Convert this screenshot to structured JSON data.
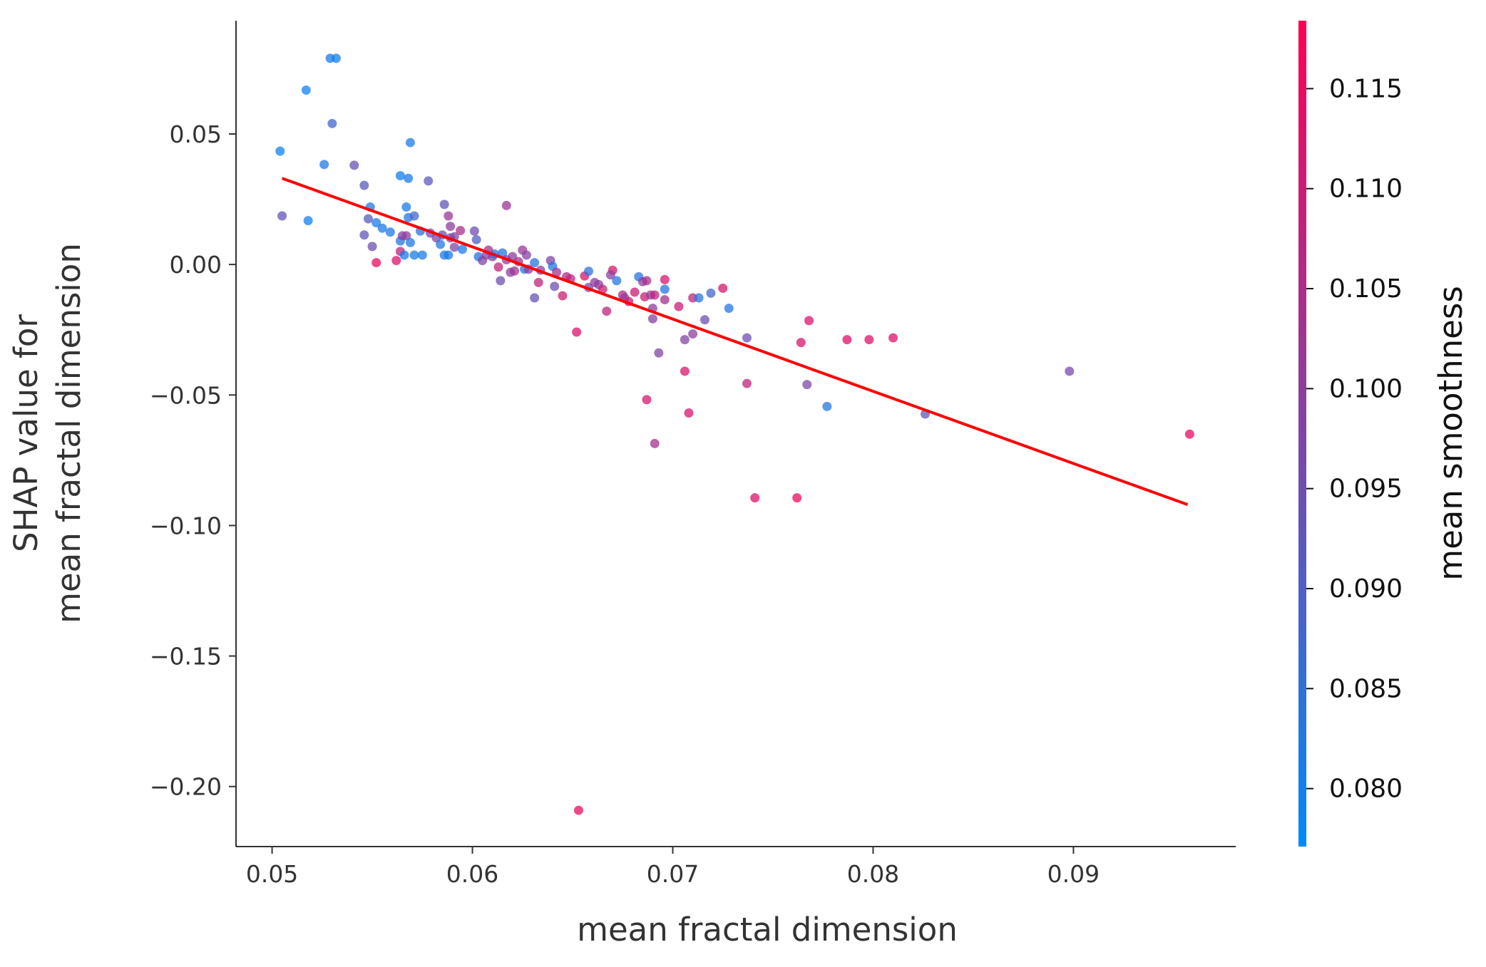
{
  "chart_data": {
    "type": "scatter",
    "xlabel": "mean fractal dimension",
    "ylabel": [
      "SHAP value for",
      "mean fractal dimension"
    ],
    "xlim": [
      0.0482,
      0.0981
    ],
    "ylim": [
      -0.223,
      0.0934
    ],
    "xticks": [
      0.05,
      0.06,
      0.07,
      0.08,
      0.09
    ],
    "yticks": [
      0.05,
      {
        "value": 0,
        "label": "0.00"
      },
      {
        "value": -0.05,
        "label": "−0.05"
      },
      {
        "value": -0.1,
        "label": "−0.10"
      },
      {
        "value": -0.15,
        "label": "−0.15"
      },
      {
        "value": -0.2,
        "label": "−0.20"
      }
    ],
    "x": [
      0.0504,
      0.0505,
      0.0517,
      0.0518,
      0.0529,
      0.0532,
      0.053,
      0.0526,
      0.0541,
      0.0546,
      0.0548,
      0.0549,
      0.0546,
      0.055,
      0.0552,
      0.0552,
      0.0555,
      0.0559,
      0.0562,
      0.0564,
      0.0567,
      0.0568,
      0.0569,
      0.0564,
      0.0565,
      0.0567,
      0.0564,
      0.0566,
      0.0568,
      0.0569,
      0.0571,
      0.0571,
      0.0575,
      0.0574,
      0.0578,
      0.0579,
      0.0582,
      0.0584,
      0.0585,
      0.0586,
      0.0588,
      0.0586,
      0.0588,
      0.0589,
      0.0589,
      0.0591,
      0.0591,
      0.0594,
      0.0595,
      0.0601,
      0.0602,
      0.0603,
      0.0605,
      0.0607,
      0.0608,
      0.061,
      0.0611,
      0.0613,
      0.0614,
      0.0615,
      0.0617,
      0.0617,
      0.0619,
      0.062,
      0.0621,
      0.0623,
      0.0625,
      0.0626,
      0.0627,
      0.0628,
      0.0631,
      0.0631,
      0.0633,
      0.0634,
      0.0639,
      0.064,
      0.0641,
      0.0642,
      0.0645,
      0.0647,
      0.0649,
      0.0652,
      0.0653,
      0.0656,
      0.0658,
      0.0658,
      0.0661,
      0.0663,
      0.0665,
      0.0667,
      0.067,
      0.0669,
      0.0672,
      0.0675,
      0.0676,
      0.0678,
      0.0681,
      0.0683,
      0.0685,
      0.0686,
      0.0687,
      0.0687,
      0.0689,
      0.069,
      0.069,
      0.0691,
      0.0691,
      0.0693,
      0.0696,
      0.0696,
      0.0696,
      0.0703,
      0.0706,
      0.0706,
      0.0708,
      0.071,
      0.071,
      0.0713,
      0.0716,
      0.0719,
      0.0725,
      0.0728,
      0.0737,
      0.0737,
      0.0741,
      0.0768,
      0.0764,
      0.0762,
      0.0767,
      0.0777,
      0.0787,
      0.0798,
      0.081,
      0.0826,
      0.0898,
      0.0958
    ],
    "values": [
      0.0434,
      0.0186,
      0.0668,
      0.0168,
      0.079,
      0.079,
      0.054,
      0.0383,
      0.038,
      0.0303,
      0.0175,
      0.022,
      0.0113,
      0.0069,
      0.0007,
      0.016,
      0.0139,
      0.0124,
      0.0015,
      0.034,
      0.022,
      0.033,
      0.0467,
      0.009,
      0.011,
      0.011,
      0.005,
      0.0036,
      0.018,
      0.0084,
      0.0036,
      0.0186,
      0.0036,
      0.0128,
      0.032,
      0.012,
      0.0102,
      0.0077,
      0.0113,
      0.0036,
      0.0036,
      0.023,
      0.0186,
      0.0146,
      0.0102,
      0.0066,
      0.0106,
      0.013,
      0.0058,
      0.0128,
      0.0095,
      0.003,
      0.0015,
      0.0036,
      0.0055,
      0.003,
      0.004,
      -0.001,
      -0.0062,
      0.0044,
      0.0226,
      0.0018,
      -0.003,
      0.003,
      -0.0025,
      0.0011,
      0.0055,
      -0.0018,
      0.0036,
      -0.0018,
      0.0007,
      -0.0128,
      -0.0069,
      -0.0022,
      0.0015,
      -0.0007,
      -0.0084,
      -0.003,
      -0.012,
      -0.0047,
      -0.0055,
      -0.0259,
      -0.2091,
      -0.0044,
      -0.0026,
      -0.0088,
      -0.0069,
      -0.0077,
      -0.0095,
      -0.0179,
      -0.0022,
      -0.004,
      -0.0062,
      -0.0117,
      -0.0128,
      -0.0142,
      -0.0106,
      -0.0047,
      -0.0066,
      -0.0124,
      -0.0062,
      -0.0518,
      -0.0117,
      -0.0168,
      -0.0208,
      -0.0686,
      -0.0117,
      -0.0339,
      -0.0058,
      -0.0095,
      -0.0135,
      -0.0161,
      -0.0288,
      -0.0409,
      -0.0569,
      -0.0128,
      -0.0266,
      -0.0128,
      -0.0212,
      -0.011,
      -0.0091,
      -0.0168,
      -0.0281,
      -0.0456,
      -0.0894,
      -0.0215,
      -0.0299,
      -0.0894,
      -0.046,
      -0.0544,
      -0.0288,
      -0.0288,
      -0.0281,
      -0.0573,
      -0.0409,
      -0.065
    ],
    "color_values": [
      0.08,
      0.093,
      0.08,
      0.08,
      0.082,
      0.08,
      0.088,
      0.082,
      0.094,
      0.092,
      0.091,
      0.082,
      0.093,
      0.095,
      0.115,
      0.082,
      0.082,
      0.082,
      0.113,
      0.08,
      0.082,
      0.082,
      0.082,
      0.083,
      0.098,
      0.1,
      0.108,
      0.082,
      0.082,
      0.082,
      0.082,
      0.088,
      0.082,
      0.083,
      0.092,
      0.095,
      0.098,
      0.083,
      0.092,
      0.082,
      0.082,
      0.093,
      0.102,
      0.1,
      0.098,
      0.097,
      0.097,
      0.105,
      0.082,
      0.095,
      0.09,
      0.083,
      0.098,
      0.1,
      0.104,
      0.098,
      0.083,
      0.108,
      0.095,
      0.083,
      0.102,
      0.1,
      0.1,
      0.1,
      0.102,
      0.104,
      0.102,
      0.083,
      0.098,
      0.1,
      0.084,
      0.094,
      0.108,
      0.1,
      0.098,
      0.083,
      0.095,
      0.104,
      0.11,
      0.106,
      0.108,
      0.113,
      0.115,
      0.112,
      0.084,
      0.098,
      0.1,
      0.1,
      0.11,
      0.108,
      0.112,
      0.1,
      0.083,
      0.106,
      0.1,
      0.11,
      0.11,
      0.083,
      0.1,
      0.11,
      0.104,
      0.112,
      0.1,
      0.1,
      0.1,
      0.104,
      0.108,
      0.098,
      0.112,
      0.083,
      0.104,
      0.11,
      0.098,
      0.112,
      0.112,
      0.108,
      0.1,
      0.083,
      0.095,
      0.088,
      0.112,
      0.083,
      0.095,
      0.108,
      0.113,
      0.113,
      0.112,
      0.115,
      0.097,
      0.083,
      0.113,
      0.113,
      0.113,
      0.093,
      0.097,
      0.115
    ],
    "trend": {
      "x": [
        0.0505,
        0.0957
      ],
      "values": [
        0.033,
        -0.092
      ],
      "color": "#ff0000"
    },
    "colorbar": {
      "label": "mean smoothness",
      "lim": [
        0.0771,
        0.1184
      ],
      "colors": [
        "#008afa",
        "#ff0052"
      ],
      "ticks": [
        {
          "value": 0.08,
          "label": "0.080"
        },
        {
          "value": 0.085,
          "label": "0.085"
        },
        {
          "value": 0.09,
          "label": "0.090"
        },
        {
          "value": 0.095,
          "label": "0.095"
        },
        {
          "value": 0.1,
          "label": "0.100"
        },
        {
          "value": 0.105,
          "label": "0.105"
        },
        {
          "value": 0.11,
          "label": "0.110"
        },
        {
          "value": 0.115,
          "label": "0.115"
        }
      ]
    }
  }
}
